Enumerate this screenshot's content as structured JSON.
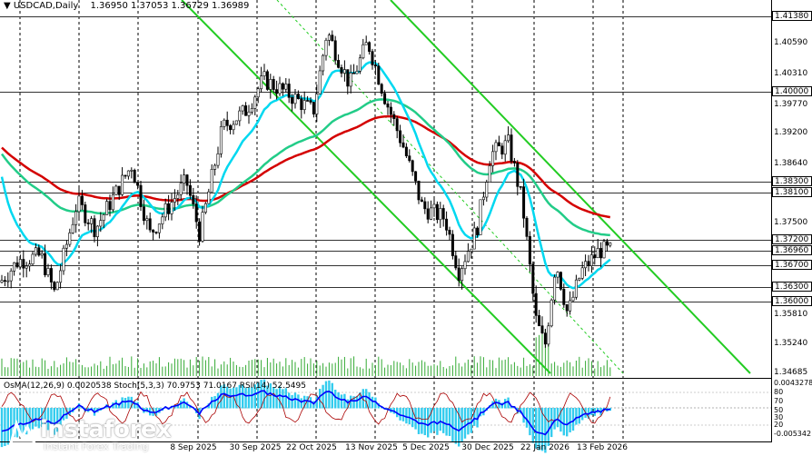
{
  "header": {
    "symbol": "USDCAD,Daily",
    "ohlc": "1.36950 1.37053 1.36729 1.36989"
  },
  "price_axis": [
    {
      "text": "1.41380",
      "boxed": true
    },
    {
      "text": "1.40590",
      "boxed": false
    },
    {
      "text": "1.40310",
      "boxed": false
    },
    {
      "text": "1.40000",
      "boxed": true
    },
    {
      "text": "1.39770",
      "boxed": false
    },
    {
      "text": "1.39200",
      "boxed": false
    },
    {
      "text": "1.38640",
      "boxed": false
    },
    {
      "text": "1.38300",
      "boxed": true
    },
    {
      "text": "1.38100",
      "boxed": true
    },
    {
      "text": "1.37500",
      "boxed": false
    },
    {
      "text": "1.37200",
      "boxed": true
    },
    {
      "text": "1.36960",
      "boxed": true
    },
    {
      "text": "1.36700",
      "boxed": true
    },
    {
      "text": "1.36300",
      "boxed": true
    },
    {
      "text": "1.36000",
      "boxed": true
    },
    {
      "text": "1.35810",
      "boxed": false
    },
    {
      "text": "1.35240",
      "boxed": false
    },
    {
      "text": "1.34685",
      "boxed": false
    }
  ],
  "indicator": {
    "header": "OsMA(12,26,9) 0.0020538  Stoch(5,3,3) 70.9753 71.0167  RSI(14) 52.5495",
    "labels": [
      "0.0043278",
      "80",
      "70",
      "50",
      "30",
      "20",
      "-0.005342"
    ]
  },
  "date_axis": [
    "8 Sep 2025",
    "30 Sep 2025",
    "22 Oct 2025",
    "13 Nov 2025",
    "5 Dec 2025",
    "30 Dec 2025",
    "22 Jan 2026",
    "13 Feb 2026"
  ],
  "logo": {
    "name": "instaforex",
    "tagline": "Instant Forex Trading"
  },
  "colors": {
    "bull_body": "#ffffff",
    "candle": "#000000",
    "ema200": "#d40000",
    "ema144": "#22cc88",
    "ema50": "#00d8f0",
    "channel": "#22cc22",
    "volume": "#33aa33",
    "osma": "#33ccee",
    "stoch": "#aa0000",
    "rsi": "#0000ff"
  }
}
